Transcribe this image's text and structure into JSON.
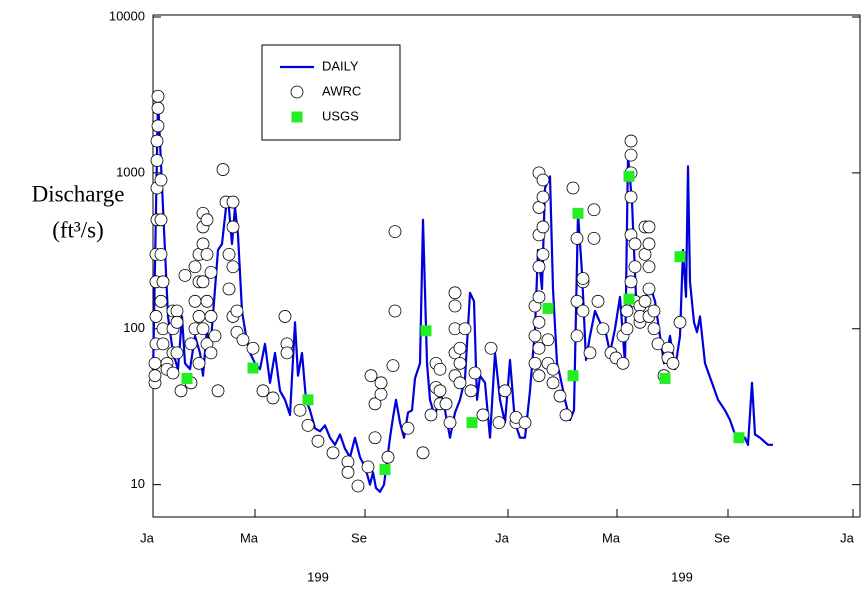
{
  "chart_data": {
    "type": "line",
    "ylabel": [
      "Discharge",
      "(ft³/s)"
    ],
    "year_labels": [
      "199",
      "199"
    ],
    "log_y": true,
    "xlim": [
      0,
      707
    ],
    "xticks": [
      {
        "value": 0,
        "label": "Ja"
      },
      {
        "value": 102,
        "label": "Ma"
      },
      {
        "value": 212,
        "label": "Se"
      },
      {
        "value": 355,
        "label": "Ja"
      },
      {
        "value": 464,
        "label": "Ma"
      },
      {
        "value": 575,
        "label": "Se"
      },
      {
        "value": 700,
        "label": "Ja"
      }
    ],
    "ylim": [
      6.2,
      10300
    ],
    "yticks": [
      10,
      100,
      1000,
      10000
    ],
    "legend": "upper left",
    "series": [
      {
        "name": "DAILY",
        "color": "#0000dd",
        "marker": "line",
        "x": [
          0,
          5,
          10,
          15,
          20,
          25,
          29,
          32,
          37,
          42,
          47,
          50,
          54,
          57,
          62,
          65,
          69,
          73,
          75,
          79,
          82,
          85,
          89,
          93,
          97,
          102,
          107,
          112,
          117,
          122,
          127,
          132,
          137,
          142,
          145,
          149,
          153,
          157,
          162,
          167,
          172,
          177,
          182,
          187,
          192,
          197,
          202,
          207,
          212,
          217,
          220,
          223,
          227,
          231,
          237,
          240,
          243,
          247,
          251,
          255,
          259,
          262,
          267,
          270,
          274,
          277,
          282,
          287,
          292,
          297,
          302,
          307,
          312,
          317,
          321,
          324,
          327,
          332,
          337,
          342,
          347,
          352,
          357,
          362,
          367,
          372,
          377,
          382,
          385,
          389,
          392,
          397,
          400,
          404,
          407,
          412,
          417,
          421,
          425,
          429,
          433,
          437,
          442,
          447,
          452,
          457,
          462,
          467,
          472,
          475,
          479,
          483,
          487,
          492,
          497,
          502,
          507,
          511,
          514,
          517,
          522,
          527,
          530,
          533,
          535,
          537,
          541,
          544,
          547,
          552,
          559,
          565,
          572,
          577,
          582,
          587,
          592,
          595,
          599,
          602,
          607,
          615,
          620
        ],
        "values": [
          50,
          3000,
          600,
          120,
          70,
          55,
          120,
          60,
          55,
          90,
          70,
          50,
          100,
          70,
          180,
          320,
          350,
          600,
          700,
          350,
          600,
          400,
          130,
          90,
          70,
          60,
          55,
          80,
          45,
          70,
          40,
          35,
          28,
          110,
          50,
          70,
          35,
          30,
          23,
          22,
          24,
          20,
          18,
          21,
          17,
          15,
          20,
          15,
          13,
          10,
          12,
          9.5,
          9,
          10,
          20,
          27,
          35,
          25,
          20,
          29,
          30,
          48,
          60,
          500,
          60,
          35,
          27,
          40,
          30,
          20,
          29,
          35,
          48,
          170,
          150,
          35,
          50,
          45,
          20,
          70,
          35,
          25,
          63,
          25,
          20,
          20,
          40,
          100,
          320,
          180,
          800,
          950,
          180,
          60,
          50,
          35,
          26,
          30,
          550,
          230,
          63,
          90,
          130,
          110,
          100,
          70,
          100,
          160,
          60,
          1300,
          650,
          160,
          130,
          150,
          190,
          150,
          90,
          60,
          70,
          90,
          55,
          90,
          320,
          160,
          1100,
          200,
          110,
          95,
          120,
          60,
          45,
          35,
          30,
          26,
          21,
          19,
          20,
          18,
          45,
          21,
          20,
          18,
          18
        ]
      },
      {
        "name": "AWRC",
        "color": "#000000",
        "marker": "circle",
        "x": [
          2,
          2,
          2,
          3,
          3,
          3,
          3,
          4,
          4,
          4,
          4,
          5,
          5,
          5,
          8,
          8,
          8,
          8,
          10,
          10,
          10,
          14,
          14,
          20,
          20,
          20,
          20,
          24,
          24,
          24,
          28,
          32,
          38,
          38,
          42,
          42,
          42,
          46,
          46,
          46,
          46,
          50,
          50,
          50,
          50,
          50,
          54,
          54,
          54,
          54,
          58,
          58,
          58,
          62,
          65,
          70,
          73,
          76,
          76,
          80,
          80,
          80,
          80,
          84,
          84,
          90,
          100,
          110,
          120,
          132,
          134,
          134,
          147,
          155,
          165,
          180,
          195,
          195,
          205,
          215,
          218,
          222,
          222,
          228,
          228,
          235,
          240,
          242,
          242,
          255,
          270,
          278,
          283,
          283,
          287,
          287,
          287,
          293,
          297,
          302,
          302,
          302,
          302,
          302,
          307,
          307,
          307,
          312,
          318,
          322,
          330,
          338,
          346,
          352,
          363,
          363,
          372,
          382,
          382,
          382,
          386,
          386,
          386,
          386,
          386,
          386,
          386,
          386,
          390,
          390,
          390,
          390,
          395,
          395,
          400,
          400,
          407,
          413,
          420,
          424,
          424,
          424,
          430,
          430,
          430,
          437,
          441,
          441,
          445,
          450,
          458,
          463,
          470,
          470,
          474,
          474,
          478,
          478,
          478,
          478,
          478,
          478,
          482,
          482,
          482,
          487,
          487,
          487,
          492,
          492,
          492,
          496,
          496,
          496,
          496,
          496,
          501,
          501,
          505,
          511,
          515,
          515,
          520,
          527
        ],
        "values": [
          45,
          50,
          60,
          80,
          120,
          200,
          300,
          500,
          800,
          1200,
          1600,
          2000,
          2600,
          3100,
          900,
          500,
          300,
          150,
          200,
          100,
          80,
          60,
          55,
          52,
          70,
          100,
          130,
          130,
          110,
          70,
          40,
          220,
          45,
          80,
          100,
          150,
          250,
          60,
          120,
          200,
          300,
          100,
          200,
          350,
          450,
          550,
          80,
          150,
          300,
          500,
          70,
          120,
          230,
          90,
          40,
          1050,
          650,
          180,
          300,
          120,
          250,
          450,
          650,
          95,
          130,
          85,
          75,
          40,
          36,
          120,
          80,
          70,
          30,
          24,
          19,
          16,
          14,
          12,
          9.8,
          13,
          50,
          33,
          20,
          38,
          45,
          15,
          58,
          420,
          130,
          23,
          16,
          28,
          42,
          60,
          40,
          33,
          55,
          33,
          25,
          50,
          70,
          100,
          140,
          170,
          60,
          45,
          75,
          100,
          40,
          52,
          28,
          75,
          25,
          40,
          25,
          27,
          25,
          60,
          90,
          140,
          50,
          75,
          110,
          160,
          250,
          400,
          600,
          1000,
          300,
          450,
          700,
          900,
          85,
          60,
          55,
          45,
          37,
          28,
          800,
          380,
          150,
          90,
          200,
          210,
          130,
          70,
          580,
          380,
          150,
          100,
          70,
          65,
          90,
          60,
          100,
          130,
          200,
          400,
          700,
          1000,
          1300,
          1600,
          150,
          250,
          350,
          110,
          140,
          120,
          150,
          300,
          450,
          120,
          180,
          250,
          350,
          450,
          100,
          130,
          80,
          50,
          75,
          65,
          60,
          110
        ]
      },
      {
        "name": "USGS",
        "color": "#22ee22",
        "marker": "square",
        "x": [
          34,
          100,
          155,
          232,
          273,
          319,
          395,
          420,
          425,
          476,
          476,
          512,
          527,
          586
        ],
        "values": [
          48,
          56,
          35,
          12.5,
          97,
          25,
          135,
          50,
          550,
          950,
          155,
          48,
          290,
          20
        ]
      }
    ]
  }
}
